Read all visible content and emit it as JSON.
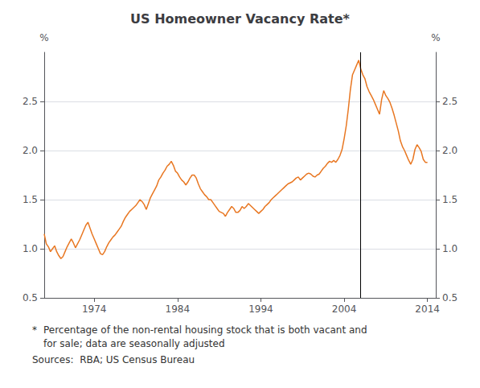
{
  "chart_data": {
    "type": "line",
    "title": "US Homeowner Vacancy Rate*",
    "ylabel": "%",
    "y2label": "%",
    "x": [
      1968.0,
      1968.25,
      1968.5,
      1968.75,
      1969.0,
      1969.25,
      1969.5,
      1969.75,
      1970.0,
      1970.25,
      1970.5,
      1970.75,
      1971.0,
      1971.25,
      1971.5,
      1971.75,
      1972.0,
      1972.25,
      1972.5,
      1972.75,
      1973.0,
      1973.25,
      1973.5,
      1973.75,
      1974.0,
      1974.25,
      1974.5,
      1974.75,
      1975.0,
      1975.25,
      1975.5,
      1975.75,
      1976.0,
      1976.25,
      1976.5,
      1976.75,
      1977.0,
      1977.25,
      1977.5,
      1977.75,
      1978.0,
      1978.25,
      1978.5,
      1978.75,
      1979.0,
      1979.25,
      1979.5,
      1979.75,
      1980.0,
      1980.25,
      1980.5,
      1980.75,
      1981.0,
      1981.25,
      1981.5,
      1981.75,
      1982.0,
      1982.25,
      1982.5,
      1982.75,
      1983.0,
      1983.25,
      1983.5,
      1983.75,
      1984.0,
      1984.25,
      1984.5,
      1984.75,
      1985.0,
      1985.25,
      1985.5,
      1985.75,
      1986.0,
      1986.25,
      1986.5,
      1986.75,
      1987.0,
      1987.25,
      1987.5,
      1987.75,
      1988.0,
      1988.25,
      1988.5,
      1988.75,
      1989.0,
      1989.25,
      1989.5,
      1989.75,
      1990.0,
      1990.25,
      1990.5,
      1990.75,
      1991.0,
      1991.25,
      1991.5,
      1991.75,
      1992.0,
      1992.25,
      1992.5,
      1992.75,
      1993.0,
      1993.25,
      1993.5,
      1993.75,
      1994.0,
      1994.25,
      1994.5,
      1994.75,
      1995.0,
      1995.25,
      1995.5,
      1995.75,
      1996.0,
      1996.25,
      1996.5,
      1996.75,
      1997.0,
      1997.25,
      1997.5,
      1997.75,
      1998.0,
      1998.25,
      1998.5,
      1998.75,
      1999.0,
      1999.25,
      1999.5,
      1999.75,
      2000.0,
      2000.25,
      2000.5,
      2000.75,
      2001.0,
      2001.25,
      2001.5,
      2001.75,
      2002.0,
      2002.25,
      2002.5,
      2002.75,
      2003.0,
      2003.25,
      2003.5,
      2003.75,
      2004.0,
      2004.25,
      2004.5,
      2004.75,
      2005.0,
      2005.25,
      2005.5,
      2005.75,
      2006.0,
      2006.25,
      2006.5,
      2006.75,
      2007.0,
      2007.25,
      2007.5,
      2007.75,
      2008.0,
      2008.25,
      2008.5,
      2008.75,
      2009.0,
      2009.25,
      2009.5,
      2009.75,
      2010.0,
      2010.25,
      2010.5,
      2010.75,
      2011.0,
      2011.25,
      2011.5,
      2011.75,
      2012.0,
      2012.25,
      2012.5,
      2012.75,
      2013.0,
      2013.25,
      2013.5,
      2013.75,
      2014.0
    ],
    "values": [
      1.15,
      1.05,
      1.02,
      0.97,
      1.0,
      1.03,
      0.97,
      0.93,
      0.9,
      0.92,
      0.97,
      1.02,
      1.06,
      1.1,
      1.06,
      1.01,
      1.05,
      1.09,
      1.14,
      1.19,
      1.24,
      1.27,
      1.21,
      1.15,
      1.1,
      1.05,
      1.0,
      0.95,
      0.94,
      0.97,
      1.02,
      1.06,
      1.09,
      1.12,
      1.14,
      1.17,
      1.2,
      1.23,
      1.28,
      1.32,
      1.35,
      1.38,
      1.4,
      1.42,
      1.44,
      1.47,
      1.5,
      1.48,
      1.45,
      1.4,
      1.46,
      1.52,
      1.56,
      1.6,
      1.64,
      1.7,
      1.73,
      1.77,
      1.8,
      1.84,
      1.86,
      1.89,
      1.85,
      1.79,
      1.77,
      1.73,
      1.7,
      1.68,
      1.65,
      1.68,
      1.72,
      1.75,
      1.75,
      1.72,
      1.66,
      1.61,
      1.58,
      1.55,
      1.53,
      1.5,
      1.5,
      1.47,
      1.44,
      1.41,
      1.38,
      1.37,
      1.36,
      1.33,
      1.37,
      1.4,
      1.43,
      1.41,
      1.37,
      1.37,
      1.39,
      1.43,
      1.41,
      1.43,
      1.46,
      1.44,
      1.42,
      1.4,
      1.38,
      1.36,
      1.38,
      1.4,
      1.43,
      1.45,
      1.47,
      1.5,
      1.52,
      1.54,
      1.56,
      1.58,
      1.6,
      1.62,
      1.64,
      1.66,
      1.67,
      1.68,
      1.7,
      1.72,
      1.73,
      1.7,
      1.72,
      1.74,
      1.76,
      1.77,
      1.76,
      1.74,
      1.73,
      1.75,
      1.76,
      1.79,
      1.82,
      1.84,
      1.87,
      1.89,
      1.88,
      1.9,
      1.88,
      1.91,
      1.95,
      2.01,
      2.12,
      2.25,
      2.42,
      2.62,
      2.77,
      2.82,
      2.87,
      2.92,
      2.83,
      2.77,
      2.73,
      2.65,
      2.6,
      2.56,
      2.52,
      2.47,
      2.42,
      2.37,
      2.52,
      2.61,
      2.56,
      2.53,
      2.49,
      2.43,
      2.36,
      2.28,
      2.2,
      2.1,
      2.04,
      2.0,
      1.95,
      1.9,
      1.86,
      1.91,
      2.01,
      2.06,
      2.03,
      1.99,
      1.91,
      1.88,
      1.88
    ],
    "color": "#E87722",
    "xlim": [
      1968.0,
      2015.0
    ],
    "xticks": [
      1974,
      1984,
      1994,
      2004,
      2014
    ],
    "ylim": [
      0.5,
      3.0
    ],
    "yticks": [
      0.5,
      {
        "value": 1.0,
        "label": "1.0"
      },
      1.5,
      {
        "value": 2.0,
        "label": "2.0"
      },
      2.5
    ],
    "y2lim": [
      0.5,
      3.0
    ],
    "y2ticks": [
      0.5,
      {
        "value": 1.0,
        "label": "1.0"
      },
      1.5,
      {
        "value": 2.0,
        "label": "2.0"
      },
      2.5
    ],
    "grid": true,
    "vline": {
      "x": 2006.0,
      "color": "#000000"
    },
    "annotations": [
      "*",
      "Percentage of the non-rental housing stock that is both vacant and",
      "for sale; data are seasonally adjusted",
      "Sources:  RBA; US Census Bureau"
    ]
  }
}
